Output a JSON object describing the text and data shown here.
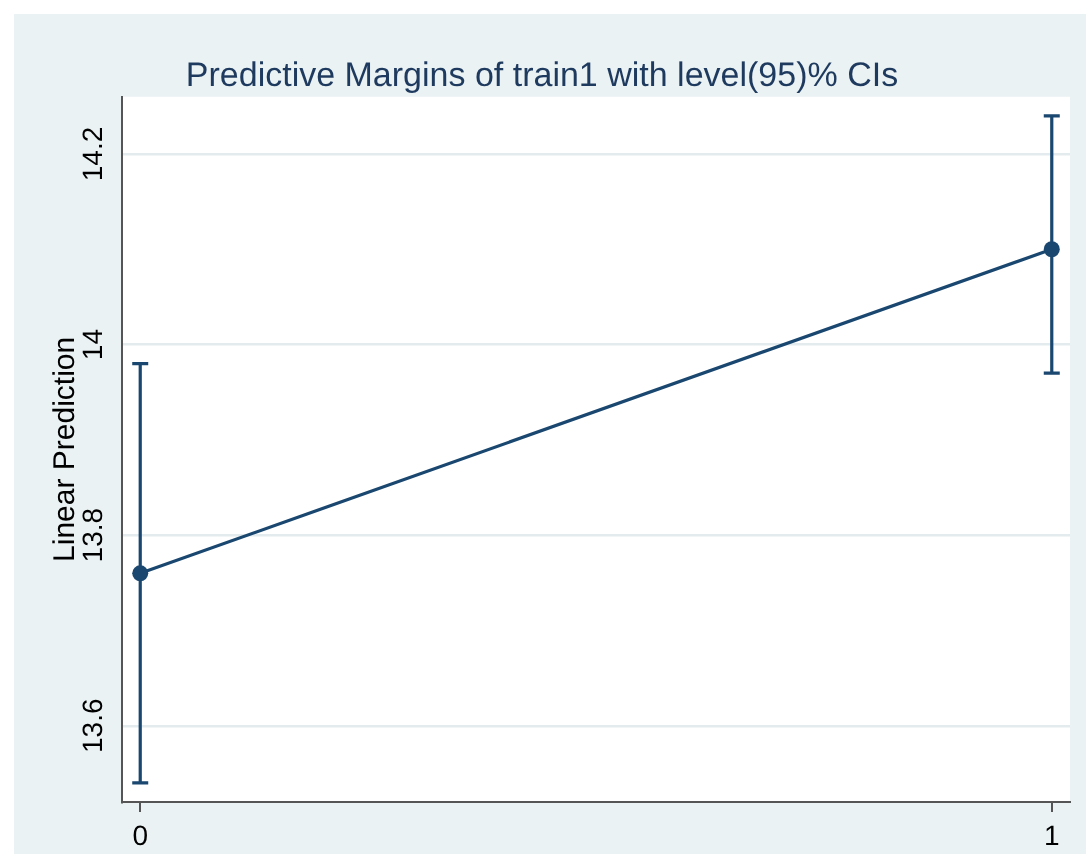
{
  "chart_data": {
    "type": "line",
    "title": "Predictive Margins of train1 with level(95)% CIs",
    "ylabel": "Linear Prediction",
    "x": [
      0,
      1
    ],
    "xlim": [
      -0.02,
      1.02
    ],
    "xticks": [
      0,
      1
    ],
    "ylim": [
      13.52,
      14.26
    ],
    "yticks": [
      13.6,
      13.8,
      14,
      14.2
    ],
    "series": [
      {
        "color": "#1a476f",
        "values": [
          13.76,
          14.1
        ],
        "errors": [
          [
            13.54,
            13.98
          ],
          [
            13.97,
            14.24
          ]
        ]
      }
    ],
    "grid": "y",
    "legend": false,
    "marker": "circle",
    "line_style": "solid"
  }
}
